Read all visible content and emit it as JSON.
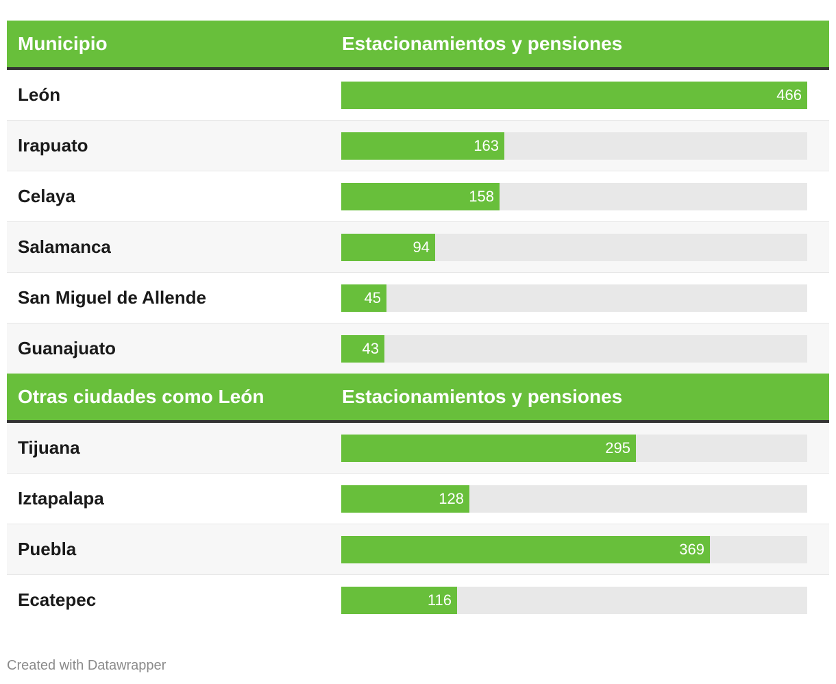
{
  "colors": {
    "accent": "#68bf3b",
    "header_rule": "#333333",
    "track": "#e8e8e8"
  },
  "footer": "Created with Datawrapper",
  "chart_data": [
    {
      "type": "bar",
      "orientation": "horizontal",
      "column_headers": [
        "Municipio",
        "Estacionamientos y pensiones"
      ],
      "categories": [
        "León",
        "Irapuato",
        "Celaya",
        "Salamanca",
        "San Miguel de Allende",
        "Guanajuato"
      ],
      "values": [
        466,
        163,
        158,
        94,
        45,
        43
      ],
      "xlim": [
        0,
        466
      ],
      "data_labels": true
    },
    {
      "type": "bar",
      "orientation": "horizontal",
      "column_headers": [
        "Otras ciudades como León",
        "Estacionamientos y pensiones"
      ],
      "categories": [
        "Tijuana",
        "Iztapalapa",
        "Puebla",
        "Ecatepec"
      ],
      "values": [
        295,
        128,
        369,
        116
      ],
      "xlim": [
        0,
        466
      ],
      "data_labels": true
    }
  ]
}
